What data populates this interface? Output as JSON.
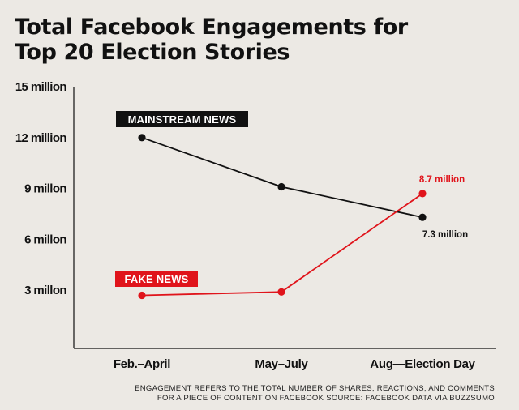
{
  "title_lines": [
    "Total Facebook Engagements for",
    "Top 20 Election Stories"
  ],
  "footnote_lines": [
    "ENGAGEMENT REFERS TO THE TOTAL NUMBER OF SHARES, REACTIONS, AND COMMENTS",
    "FOR A PIECE OF CONTENT ON FACEBOOK SOURCE: FACEBOOK DATA VIA BUZZSUMO"
  ],
  "chart_data": {
    "type": "line",
    "title": "Total Facebook Engagements for Top 20 Election Stories",
    "categories": [
      "Feb.–April",
      "May–July",
      "Aug—Election Day"
    ],
    "y_ticks": [
      {
        "value": 15,
        "label": "15 million"
      },
      {
        "value": 12,
        "label": "12 million"
      },
      {
        "value": 9,
        "label": "9 millon"
      },
      {
        "value": 6,
        "label": "6 millon"
      },
      {
        "value": 3,
        "label": "3 millon"
      }
    ],
    "ylim": [
      0,
      15
    ],
    "y_unit": "million",
    "grid": false,
    "series": [
      {
        "name": "MAINSTREAM NEWS",
        "values": [
          12.0,
          9.1,
          7.3
        ],
        "color": "#111111",
        "end_label": "7.3 million"
      },
      {
        "name": "FAKE NEWS",
        "values": [
          2.7,
          2.9,
          8.7
        ],
        "color": "#e0141b",
        "end_label": "8.7 million"
      }
    ]
  }
}
